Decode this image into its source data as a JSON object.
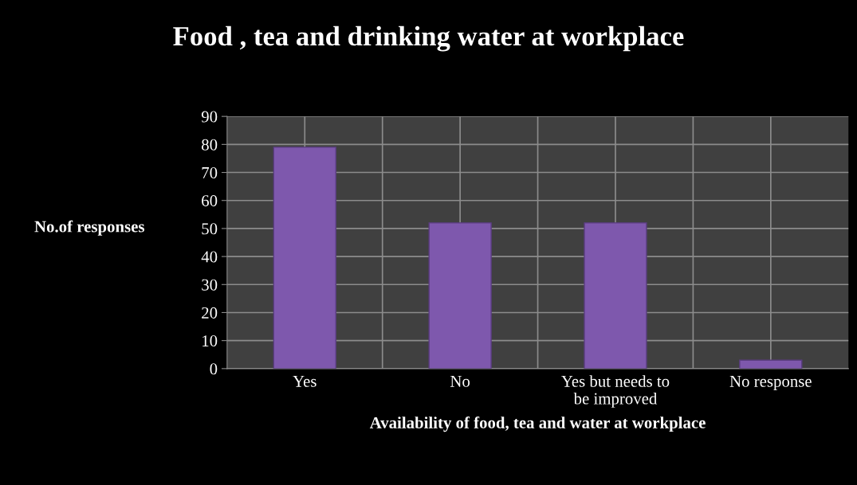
{
  "chart_data": {
    "type": "bar",
    "title": "Food , tea and drinking water at workplace",
    "xlabel": "Availability of food, tea and water at workplace",
    "ylabel": "No.of responses",
    "categories": [
      "Yes",
      "No",
      "Yes but needs to\nbe improved",
      "No response"
    ],
    "values": [
      79,
      52,
      52,
      3
    ],
    "color": "#7e58ad",
    "ylim": [
      0,
      90
    ],
    "yticks": [
      0,
      10,
      20,
      30,
      40,
      50,
      60,
      70,
      80,
      90
    ],
    "grid": true,
    "legend": false
  }
}
